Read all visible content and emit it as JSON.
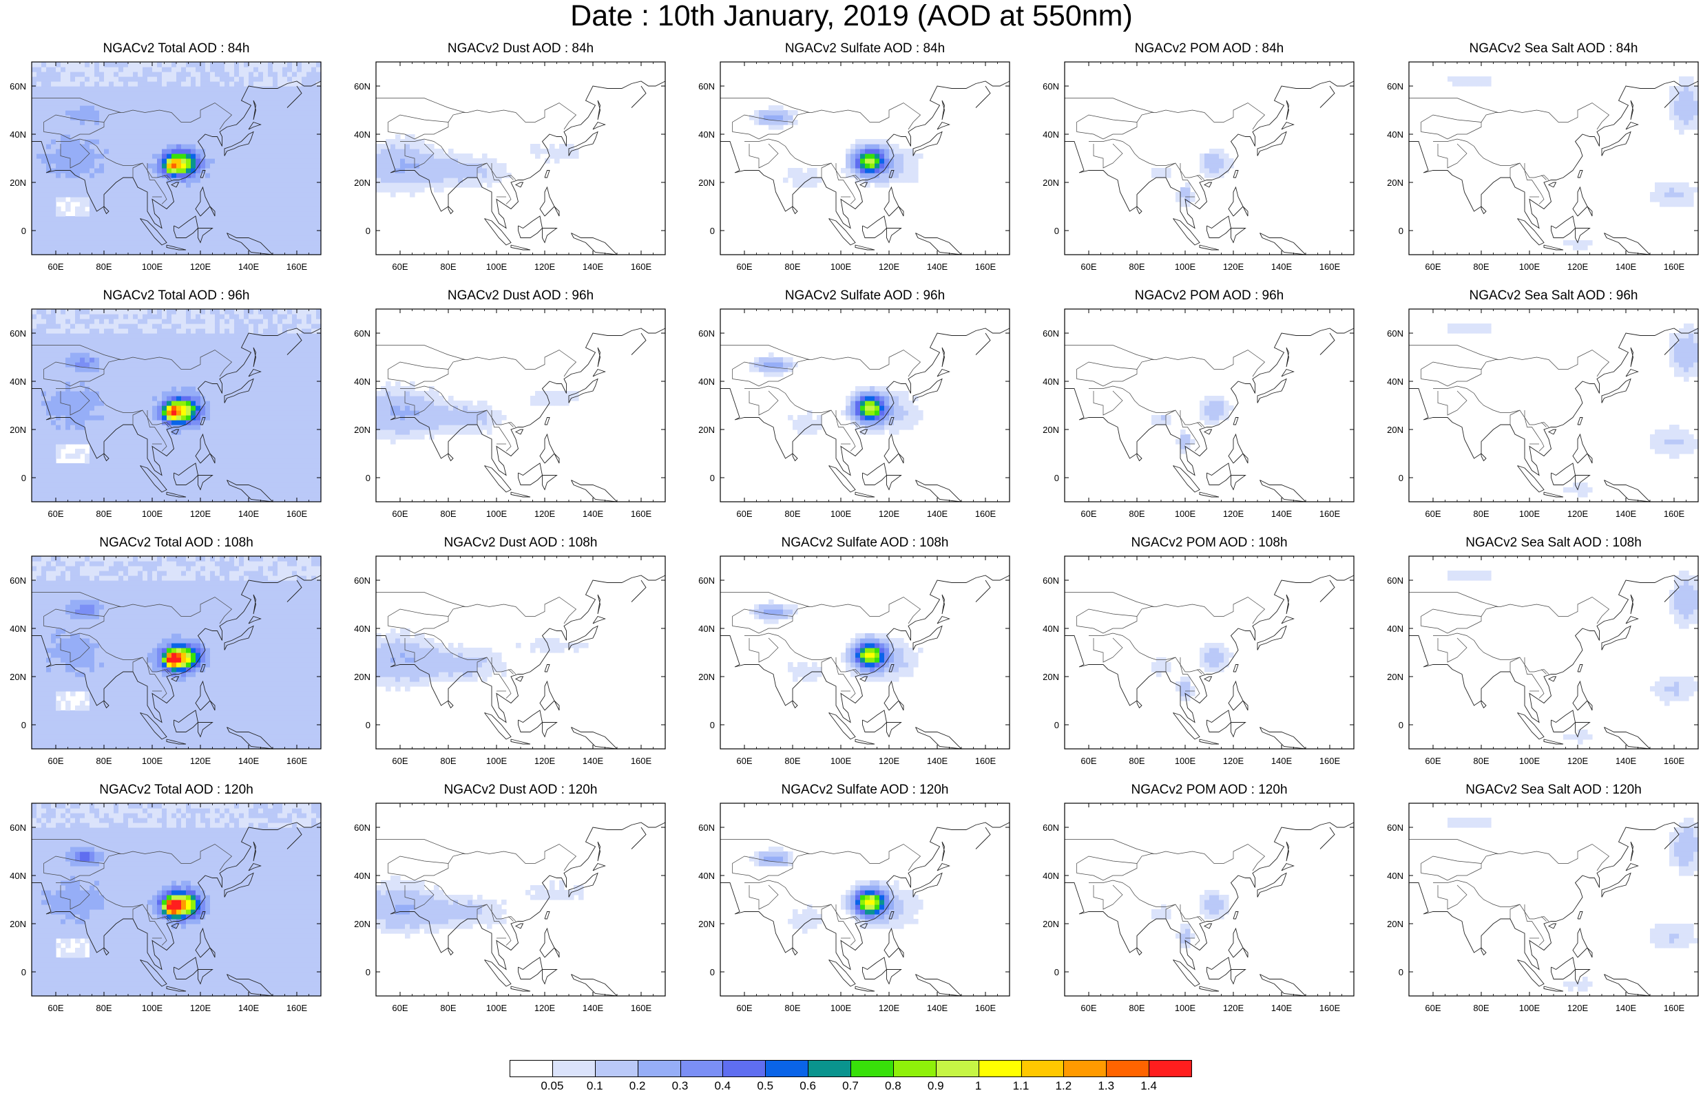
{
  "title": "Date : 10th January, 2019 (AOD at 550nm)",
  "map": {
    "projection": "cylindrical-equidistant",
    "lon_range": [
      50,
      170
    ],
    "lat_range": [
      -10,
      70
    ],
    "lon_ticks": [
      "60E",
      "80E",
      "100E",
      "120E",
      "140E",
      "160E"
    ],
    "lat_ticks": [
      "60N",
      "40N",
      "20N",
      "0"
    ],
    "region": "Asia"
  },
  "columns": [
    "Total",
    "Dust",
    "Sulfate",
    "POM",
    "Sea Salt"
  ],
  "rows": [
    "84h",
    "96h",
    "108h",
    "120h"
  ],
  "panels": [
    [
      "NGACv2 Total AOD : 84h",
      "NGACv2 Dust AOD : 84h",
      "NGACv2 Sulfate AOD : 84h",
      "NGACv2 POM AOD : 84h",
      "NGACv2 Sea Salt AOD : 84h"
    ],
    [
      "NGACv2 Total AOD : 96h",
      "NGACv2 Dust AOD : 96h",
      "NGACv2 Sulfate AOD : 96h",
      "NGACv2 POM AOD : 96h",
      "NGACv2 Sea Salt AOD : 96h"
    ],
    [
      "NGACv2 Total AOD : 108h",
      "NGACv2 Dust AOD : 108h",
      "NGACv2 Sulfate AOD : 108h",
      "NGACv2 POM AOD : 108h",
      "NGACv2 Sea Salt AOD : 108h"
    ],
    [
      "NGACv2 Total AOD : 120h",
      "NGACv2 Dust AOD : 120h",
      "NGACv2 Sulfate AOD : 120h",
      "NGACv2 POM AOD : 120h",
      "NGACv2 Sea Salt  AOD : 120h"
    ]
  ],
  "colorbar": {
    "labels": [
      "0.05",
      "0.1",
      "0.2",
      "0.3",
      "0.4",
      "0.5",
      "0.6",
      "0.7",
      "0.8",
      "0.9",
      "1",
      "1.1",
      "1.2",
      "1.3",
      "1.4"
    ],
    "colors": [
      "#ffffff",
      "#dbe3fb",
      "#bac9f8",
      "#96aef7",
      "#7b8ff5",
      "#5f6ef0",
      "#0a64e8",
      "#0a948e",
      "#38e00a",
      "#8ff00a",
      "#c6f545",
      "#ffff00",
      "#ffc800",
      "#ff9a00",
      "#ff6400",
      "#ff1e1e"
    ]
  },
  "plumes": {
    "Total": {
      "base": "#dbe3fb",
      "core_color": "#38e00a",
      "hot_color": "#ff1e1e"
    },
    "Dust": {
      "base": "#dbe3fb"
    },
    "Sulfate": {
      "base": "#dbe3fb",
      "core_color": "#38e00a"
    },
    "POM": {
      "base": "#dbe3fb"
    },
    "Sea Salt": {
      "base": "#dbe3fb"
    }
  }
}
